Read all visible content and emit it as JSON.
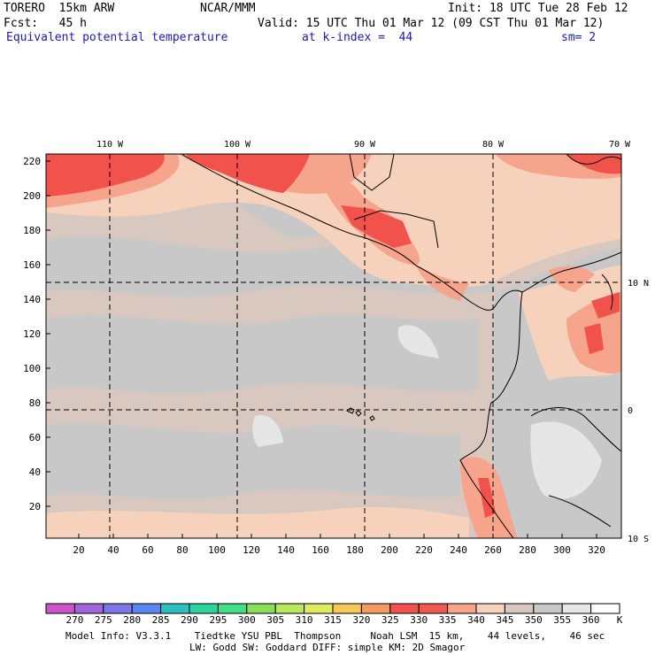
{
  "header": {
    "model": "TORERO  15km ARW",
    "center": "NCAR/MMM",
    "init": "Init: 18 UTC Tue 28 Feb 12",
    "fcst": "Fcst:   45 h",
    "valid": "Valid: 15 UTC Thu 01 Mar 12 (09 CST Thu 01 Mar 12)",
    "field": "Equivalent potential temperature",
    "level": "at k-index =  44",
    "smooth": "sm= 2"
  },
  "map": {
    "lon_labels": [
      "110 W",
      "100 W",
      "90 W",
      "80 W",
      "70 W"
    ],
    "lat_labels": [
      "10 N",
      "0",
      "10 S"
    ],
    "x_ticks": [
      "20",
      "40",
      "60",
      "80",
      "100",
      "120",
      "140",
      "160",
      "180",
      "200",
      "220",
      "240",
      "260",
      "280",
      "300",
      "320"
    ],
    "y_ticks": [
      "20",
      "40",
      "60",
      "80",
      "100",
      "120",
      "140",
      "160",
      "180",
      "200",
      "220"
    ],
    "grid_x_range": [
      0,
      333
    ],
    "grid_y_range": [
      0,
      223
    ]
  },
  "colorbar": {
    "labels": [
      "270",
      "275",
      "280",
      "285",
      "290",
      "295",
      "300",
      "305",
      "310",
      "315",
      "320",
      "325",
      "330",
      "335",
      "340",
      "345",
      "350",
      "355",
      "360"
    ],
    "unit": "K",
    "colors": [
      "#cc55cc",
      "#a066d8",
      "#7f76ea",
      "#5a87f2",
      "#2ec0c0",
      "#2ed4a0",
      "#44dd88",
      "#88e058",
      "#b8e860",
      "#e0ec60",
      "#f6c85c",
      "#f49a62",
      "#f2524c",
      "#f05a4e",
      "#f7a48c",
      "#f6d2bc",
      "#d8c8c0",
      "#c8c8c8",
      "#e6e6e6",
      "#ffffff"
    ]
  },
  "footer": {
    "line1": "Model Info: V3.3.1    Tiedtke YSU PBL  Thompson     Noah LSM  15 km,    44 levels,    46 sec",
    "line2": "LW: Godd SW: Goddard DIFF: simple KM: 2D Smagor"
  }
}
